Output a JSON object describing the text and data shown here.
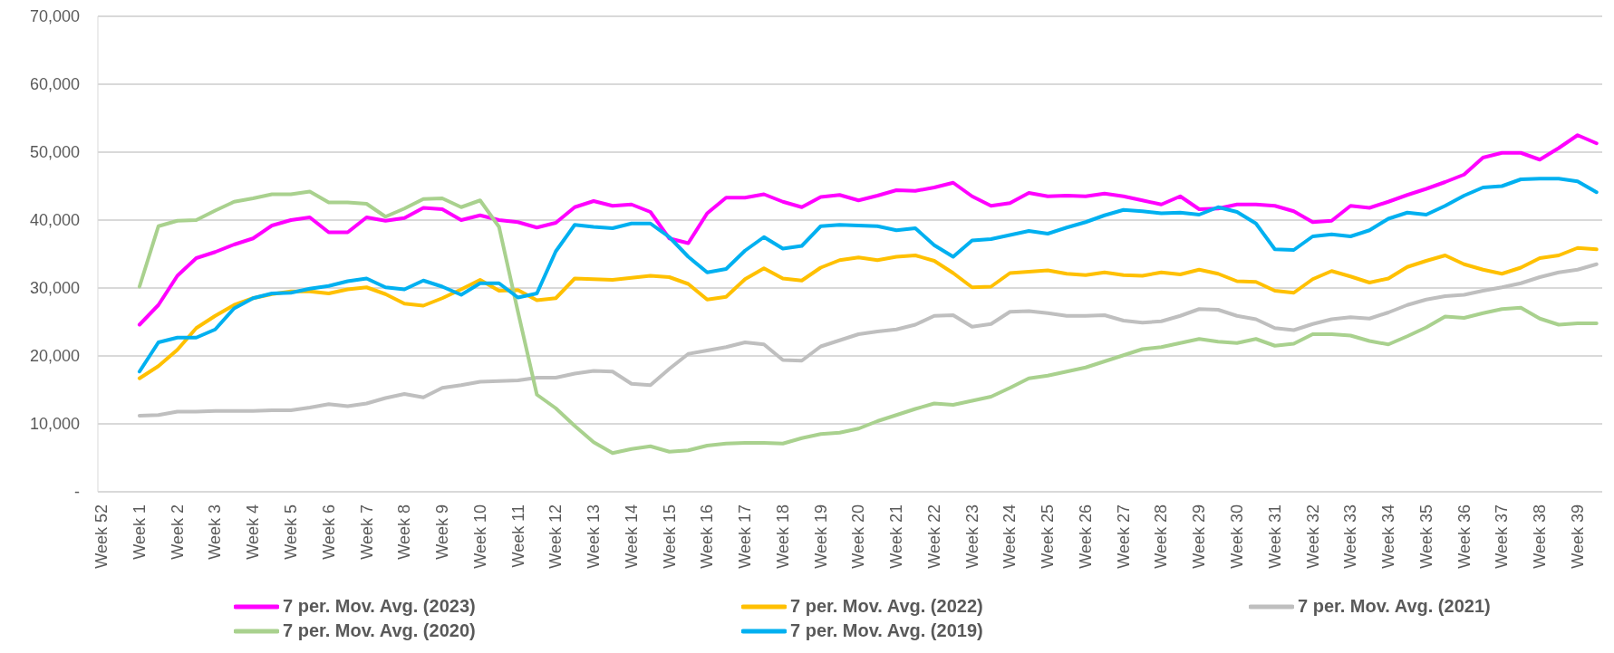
{
  "chart_data": {
    "type": "line",
    "legend": "bottom",
    "grid": "y",
    "marker": "none",
    "line_style": "solid",
    "categories": [
      "Week 52",
      null,
      "Week 1",
      null,
      "Week 2",
      null,
      "Week 3",
      null,
      "Week 4",
      null,
      "Week 5",
      null,
      "Week 6",
      null,
      "Week 7",
      null,
      "Week 8",
      null,
      "Week 9",
      null,
      "Week 10",
      null,
      "Week 11",
      null,
      "Week 12",
      null,
      "Week 13",
      null,
      "Week 14",
      null,
      "Week 15",
      null,
      "Week 16",
      null,
      "Week 17",
      null,
      "Week 18",
      null,
      "Week 19",
      null,
      "Week 20",
      null,
      "Week 21",
      null,
      "Week 22",
      null,
      "Week 23",
      null,
      "Week 24",
      null,
      "Week 25",
      null,
      "Week 26",
      null,
      "Week 27",
      null,
      "Week 28",
      null,
      "Week 29",
      null,
      "Week 30",
      null,
      "Week 31",
      null,
      "Week 32",
      null,
      "Week 33",
      null,
      "Week 34",
      null,
      "Week 35",
      null,
      "Week 36",
      null,
      "Week 37",
      null,
      "Week 38",
      null,
      "Week 39",
      null
    ],
    "ylim": [
      0,
      70000
    ],
    "yticks": [
      {
        "value": 0,
        "label": "-"
      },
      {
        "value": 10000,
        "label": "10,000"
      },
      {
        "value": 20000,
        "label": "20,000"
      },
      {
        "value": 30000,
        "label": "30,000"
      },
      {
        "value": 40000,
        "label": "40,000"
      },
      {
        "value": 50000,
        "label": "50,000"
      },
      {
        "value": 60000,
        "label": "60,000"
      },
      {
        "value": 70000,
        "label": "70,000"
      }
    ],
    "series": [
      {
        "name": "7 per. Mov. Avg. (2023)",
        "color": "#ff00ff",
        "values": [
          null,
          null,
          24600,
          27500,
          31800,
          34400,
          35300,
          36400,
          37300,
          39200,
          40000,
          40400,
          38200,
          38200,
          40400,
          39900,
          40300,
          41800,
          41600,
          40000,
          40700,
          40000,
          39700,
          38900,
          39600,
          41900,
          42800,
          42100,
          42300,
          41200,
          37300,
          36600,
          41000,
          43300,
          43300,
          43800,
          42700,
          41900,
          43400,
          43700,
          42900,
          43600,
          44400,
          44300,
          44800,
          45500,
          43500,
          42100,
          42500,
          44000,
          43500,
          43600,
          43500,
          43900,
          43500,
          42900,
          42300,
          43500,
          41600,
          41700,
          42300,
          42300,
          42100,
          41300,
          39700,
          39900,
          42100,
          41800,
          42700,
          43700,
          44600,
          45600,
          46700,
          49200,
          49900,
          49900,
          48900,
          50600,
          52500,
          51300
        ]
      },
      {
        "name": "7 per. Mov. Avg. (2022)",
        "color": "#ffc000",
        "values": [
          null,
          null,
          16700,
          18500,
          20900,
          24100,
          25900,
          27500,
          28500,
          29100,
          29500,
          29500,
          29200,
          29800,
          30100,
          29100,
          27700,
          27400,
          28500,
          29800,
          31200,
          29600,
          29700,
          28200,
          28500,
          31400,
          31300,
          31200,
          31500,
          31800,
          31600,
          30600,
          28300,
          28700,
          31300,
          32900,
          31400,
          31100,
          33000,
          34100,
          34500,
          34100,
          34600,
          34800,
          34000,
          32200,
          30100,
          30200,
          32200,
          32400,
          32600,
          32100,
          31900,
          32300,
          31900,
          31800,
          32300,
          32000,
          32700,
          32100,
          31000,
          30900,
          29600,
          29300,
          31300,
          32500,
          31700,
          30800,
          31400,
          33100,
          34000,
          34800,
          33500,
          32700,
          32100,
          33000,
          34400,
          34800,
          35900,
          35700
        ]
      },
      {
        "name": "7 per. Mov. Avg. (2021)",
        "color": "#bfbfbf",
        "values": [
          null,
          null,
          11200,
          11300,
          11800,
          11800,
          11900,
          11900,
          11900,
          12000,
          12000,
          12400,
          12900,
          12600,
          13000,
          13800,
          14400,
          13900,
          15300,
          15700,
          16200,
          16300,
          16400,
          16800,
          16800,
          17400,
          17800,
          17700,
          15900,
          15700,
          18100,
          20300,
          20800,
          21300,
          22000,
          21700,
          19400,
          19300,
          21400,
          22300,
          23200,
          23600,
          23900,
          24600,
          25900,
          26000,
          24300,
          24700,
          26500,
          26600,
          26300,
          25900,
          25900,
          26000,
          25200,
          24900,
          25100,
          25900,
          26900,
          26800,
          25900,
          25400,
          24100,
          23800,
          24700,
          25400,
          25700,
          25500,
          26400,
          27500,
          28300,
          28800,
          29000,
          29600,
          30100,
          30700,
          31600,
          32300,
          32700,
          33500
        ]
      },
      {
        "name": "7 per. Mov. Avg. (2020)",
        "color": "#a9d18e",
        "values": [
          null,
          null,
          30200,
          39100,
          39900,
          40000,
          41400,
          42700,
          43200,
          43800,
          43800,
          44200,
          42600,
          42600,
          42400,
          40500,
          41700,
          43100,
          43200,
          41900,
          42900,
          39000,
          26500,
          14300,
          12300,
          9700,
          7300,
          5700,
          6300,
          6700,
          5900,
          6100,
          6800,
          7100,
          7200,
          7200,
          7100,
          7900,
          8500,
          8700,
          9300,
          10400,
          11300,
          12200,
          13000,
          12800,
          13400,
          14000,
          15300,
          16700,
          17100,
          17700,
          18300,
          19200,
          20100,
          21000,
          21300,
          21900,
          22500,
          22100,
          21900,
          22500,
          21500,
          21800,
          23200,
          23200,
          23000,
          22200,
          21700,
          22900,
          24200,
          25800,
          25600,
          26300,
          26900,
          27100,
          25500,
          24600,
          24800,
          24800
        ]
      },
      {
        "name": "7 per. Mov. Avg. (2019)",
        "color": "#00b0f0",
        "values": [
          null,
          null,
          17700,
          22000,
          22700,
          22700,
          23900,
          27000,
          28500,
          29200,
          29300,
          29900,
          30300,
          31000,
          31400,
          30100,
          29800,
          31100,
          30200,
          29000,
          30700,
          30700,
          28600,
          29200,
          35400,
          39300,
          39000,
          38800,
          39500,
          39500,
          37500,
          34600,
          32300,
          32800,
          35500,
          37500,
          35800,
          36200,
          39100,
          39300,
          39200,
          39100,
          38500,
          38800,
          36300,
          34600,
          37000,
          37200,
          37800,
          38400,
          38000,
          38900,
          39700,
          40700,
          41500,
          41300,
          41000,
          41100,
          40800,
          41900,
          41200,
          39500,
          35700,
          35600,
          37600,
          37900,
          37600,
          38500,
          40200,
          41100,
          40800,
          42100,
          43600,
          44800,
          45000,
          46000,
          46100,
          46100,
          45700,
          44100
        ]
      }
    ]
  }
}
